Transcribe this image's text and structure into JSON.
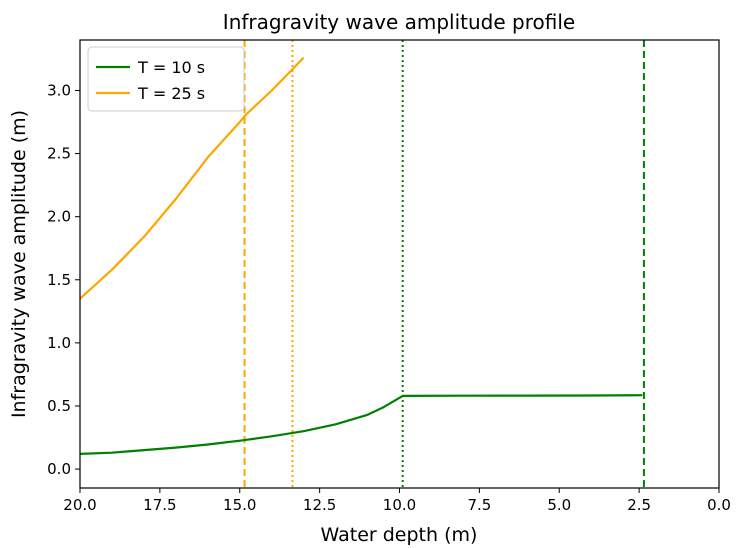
{
  "chart_data": {
    "type": "line",
    "title": "Infragravity wave amplitude profile",
    "xlabel": "Water depth (m)",
    "ylabel": "Infragravity wave amplitude (m)",
    "xlim": [
      20.0,
      0.0
    ],
    "ylim": [
      -0.15,
      3.4
    ],
    "x_inverted": true,
    "xticks": [
      "20.0",
      "17.5",
      "15.0",
      "12.5",
      "10.0",
      "7.5",
      "5.0",
      "2.5",
      "0.0"
    ],
    "yticks": [
      "0.0",
      "0.5",
      "1.0",
      "1.5",
      "2.0",
      "2.5",
      "3.0"
    ],
    "grid": false,
    "legend_position": "upper-left",
    "series": [
      {
        "name": "T = 10 s",
        "color": "#008000",
        "x": [
          20.0,
          19.0,
          18.0,
          17.0,
          16.0,
          15.0,
          14.0,
          13.0,
          12.0,
          11.0,
          10.5,
          9.9,
          8.0,
          6.0,
          4.0,
          2.4
        ],
        "y": [
          0.12,
          0.13,
          0.15,
          0.17,
          0.195,
          0.225,
          0.26,
          0.3,
          0.355,
          0.43,
          0.49,
          0.58,
          0.581,
          0.582,
          0.583,
          0.585
        ]
      },
      {
        "name": "T = 25 s",
        "color": "#ffa500",
        "x": [
          20.0,
          19.0,
          18.0,
          17.0,
          16.0,
          15.0,
          14.8,
          14.0,
          13.5,
          13.0
        ],
        "y": [
          1.35,
          1.58,
          1.84,
          2.14,
          2.47,
          2.75,
          2.81,
          3.0,
          3.13,
          3.26
        ]
      }
    ],
    "vertical_lines": [
      {
        "x": 14.85,
        "style": "dashed",
        "color": "#ffa500"
      },
      {
        "x": 13.35,
        "style": "dotted",
        "color": "#ffa500"
      },
      {
        "x": 9.9,
        "style": "dotted",
        "color": "#008000"
      },
      {
        "x": 2.35,
        "style": "dashed",
        "color": "#008000"
      }
    ]
  }
}
